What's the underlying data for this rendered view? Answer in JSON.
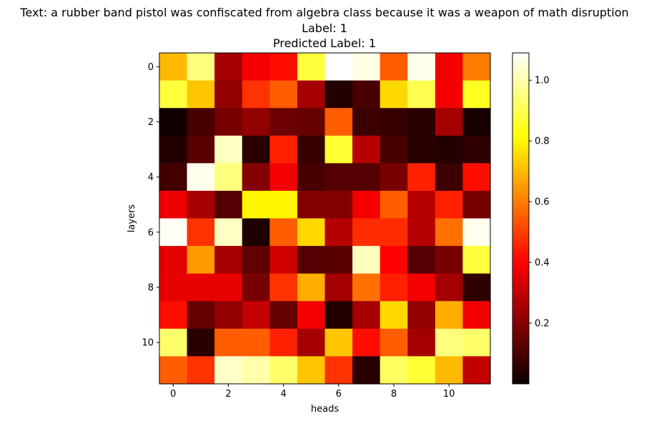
{
  "chart_data": {
    "type": "heatmap",
    "title_lines": [
      "Text: a rubber band pistol was confiscated from algebra class because it was a weapon of math disruption",
      "Label: 1",
      "Predicted Label: 1"
    ],
    "xlabel": "heads",
    "ylabel": "layers",
    "x_ticks": [
      0,
      2,
      4,
      6,
      8,
      10
    ],
    "y_ticks": [
      0,
      2,
      4,
      6,
      8,
      10
    ],
    "colormap": "hot",
    "vmin": 0.0,
    "vmax": 1.09,
    "colorbar_ticks": [
      0.2,
      0.4,
      0.6,
      0.8,
      1.0
    ],
    "colorbar_tick_labels": [
      "0.2",
      "0.4",
      "0.6",
      "0.8",
      "1.0"
    ],
    "values": [
      [
        0.7,
        0.95,
        0.25,
        0.38,
        0.42,
        0.88,
        1.09,
        1.06,
        0.55,
        1.07,
        0.38,
        0.6
      ],
      [
        0.88,
        0.72,
        0.22,
        0.48,
        0.55,
        0.25,
        0.04,
        0.1,
        0.75,
        0.9,
        0.38,
        0.85
      ],
      [
        0.01,
        0.1,
        0.18,
        0.22,
        0.16,
        0.15,
        0.55,
        0.08,
        0.07,
        0.05,
        0.25,
        0.02
      ],
      [
        0.04,
        0.13,
        1.02,
        0.05,
        0.45,
        0.07,
        0.87,
        0.28,
        0.1,
        0.05,
        0.04,
        0.06
      ],
      [
        0.09,
        1.07,
        0.95,
        0.2,
        0.38,
        0.1,
        0.12,
        0.12,
        0.18,
        0.45,
        0.08,
        0.42
      ],
      [
        0.37,
        0.25,
        0.12,
        0.8,
        0.8,
        0.2,
        0.2,
        0.38,
        0.55,
        0.28,
        0.45,
        0.18
      ],
      [
        1.08,
        0.48,
        1.02,
        0.03,
        0.55,
        0.75,
        0.28,
        0.47,
        0.47,
        0.28,
        0.58,
        1.07
      ],
      [
        0.35,
        0.65,
        0.25,
        0.14,
        0.32,
        0.12,
        0.13,
        1.02,
        0.4,
        0.12,
        0.18,
        0.88
      ],
      [
        0.36,
        0.36,
        0.36,
        0.18,
        0.48,
        0.68,
        0.25,
        0.58,
        0.45,
        0.38,
        0.25,
        0.06
      ],
      [
        0.42,
        0.15,
        0.22,
        0.3,
        0.15,
        0.38,
        0.04,
        0.25,
        0.75,
        0.22,
        0.68,
        0.38
      ],
      [
        0.93,
        0.05,
        0.55,
        0.55,
        0.45,
        0.25,
        0.72,
        0.42,
        0.55,
        0.25,
        0.95,
        0.93
      ],
      [
        0.55,
        0.48,
        1.03,
        1.0,
        0.93,
        0.72,
        0.48,
        0.05,
        0.92,
        0.87,
        0.7,
        0.3
      ]
    ]
  }
}
